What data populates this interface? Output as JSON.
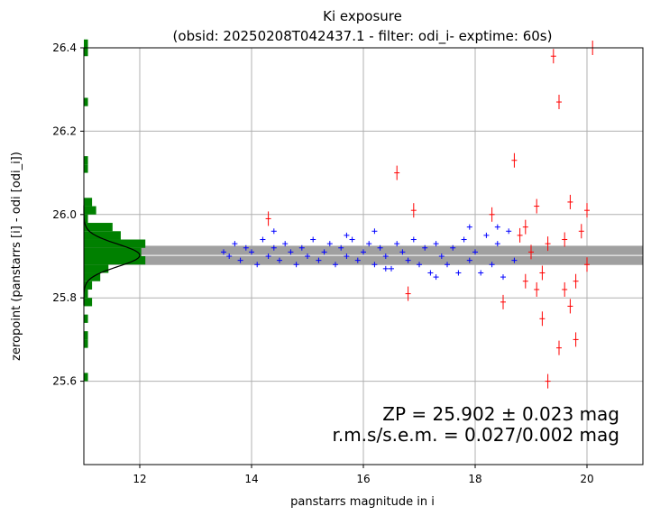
{
  "chart_data": {
    "type": "scatter",
    "title": "Ki exposure",
    "subtitle": "(obsid: 20250208T042437.1 - filter: odi_i- exptime: 60s)",
    "xlabel": "panstarrs magnitude in i",
    "ylabel": "zeropoint (panstarrs [i] - odi [odi_i])",
    "xlim": [
      11.0,
      21.0
    ],
    "ylim": [
      25.4,
      26.4
    ],
    "xticks": [
      "12",
      "14",
      "16",
      "18",
      "20"
    ],
    "yticks": [
      "25.6",
      "25.8",
      "26.0",
      "26.2",
      "26.4"
    ],
    "grid": true,
    "annotation": {
      "line1": "ZP = 25.902 ± 0.023 mag",
      "line2": "r.m.s/s.e.m. = 0.027/0.002 mag"
    },
    "zeropoint": 25.902,
    "zeropoint_band": [
      25.879,
      25.925
    ],
    "colors": {
      "blue_points": "#0000ff",
      "red_points": "#ff0000",
      "histogram": "#008000",
      "band": "#a0a0a0",
      "gaussian": "#000000",
      "grid": "#b0b0b0"
    },
    "series": [
      {
        "color": "blue",
        "points": [
          [
            13.5,
            25.91
          ],
          [
            13.6,
            25.9
          ],
          [
            13.7,
            25.93
          ],
          [
            13.8,
            25.89
          ],
          [
            13.9,
            25.92
          ],
          [
            14.0,
            25.91
          ],
          [
            14.1,
            25.88
          ],
          [
            14.2,
            25.94
          ],
          [
            14.3,
            25.9
          ],
          [
            14.4,
            25.92
          ],
          [
            14.5,
            25.89
          ],
          [
            14.6,
            25.93
          ],
          [
            14.7,
            25.91
          ],
          [
            14.8,
            25.88
          ],
          [
            14.9,
            25.92
          ],
          [
            15.0,
            25.9
          ],
          [
            15.1,
            25.94
          ],
          [
            15.2,
            25.89
          ],
          [
            15.3,
            25.91
          ],
          [
            15.4,
            25.93
          ],
          [
            15.5,
            25.88
          ],
          [
            15.6,
            25.92
          ],
          [
            15.7,
            25.9
          ],
          [
            15.8,
            25.94
          ],
          [
            15.9,
            25.89
          ],
          [
            16.0,
            25.91
          ],
          [
            16.1,
            25.93
          ],
          [
            16.2,
            25.88
          ],
          [
            16.3,
            25.92
          ],
          [
            16.4,
            25.9
          ],
          [
            16.5,
            25.87
          ],
          [
            16.6,
            25.93
          ],
          [
            16.7,
            25.91
          ],
          [
            16.8,
            25.89
          ],
          [
            16.9,
            25.94
          ],
          [
            17.0,
            25.88
          ],
          [
            17.1,
            25.92
          ],
          [
            17.2,
            25.86
          ],
          [
            17.3,
            25.93
          ],
          [
            17.4,
            25.9
          ],
          [
            17.5,
            25.88
          ],
          [
            17.6,
            25.92
          ],
          [
            17.7,
            25.86
          ],
          [
            17.8,
            25.94
          ],
          [
            17.9,
            25.89
          ],
          [
            18.0,
            25.91
          ],
          [
            18.1,
            25.86
          ],
          [
            18.2,
            25.95
          ],
          [
            18.3,
            25.88
          ],
          [
            18.4,
            25.93
          ],
          [
            18.5,
            25.85
          ],
          [
            18.6,
            25.96
          ],
          [
            18.7,
            25.89
          ],
          [
            14.4,
            25.96
          ],
          [
            15.7,
            25.95
          ],
          [
            16.2,
            25.96
          ],
          [
            17.9,
            25.97
          ],
          [
            18.4,
            25.97
          ],
          [
            17.3,
            25.85
          ],
          [
            16.4,
            25.87
          ]
        ]
      },
      {
        "color": "red",
        "points": [
          [
            14.3,
            25.99
          ],
          [
            16.6,
            26.1
          ],
          [
            16.9,
            26.01
          ],
          [
            16.8,
            25.81
          ],
          [
            18.3,
            26.0
          ],
          [
            18.5,
            25.79
          ],
          [
            18.7,
            26.13
          ],
          [
            18.8,
            25.95
          ],
          [
            18.9,
            25.84
          ],
          [
            19.0,
            25.91
          ],
          [
            19.1,
            26.02
          ],
          [
            19.2,
            25.75
          ],
          [
            19.3,
            25.93
          ],
          [
            19.4,
            26.38
          ],
          [
            19.5,
            26.27
          ],
          [
            19.6,
            25.82
          ],
          [
            19.7,
            26.03
          ],
          [
            19.8,
            25.7
          ],
          [
            19.9,
            25.96
          ],
          [
            20.0,
            25.88
          ],
          [
            20.1,
            26.4
          ],
          [
            19.3,
            25.6
          ],
          [
            19.5,
            25.68
          ],
          [
            18.9,
            25.97
          ],
          [
            19.2,
            25.86
          ],
          [
            19.6,
            25.94
          ],
          [
            19.8,
            25.84
          ],
          [
            20.0,
            26.01
          ],
          [
            19.1,
            25.82
          ],
          [
            19.7,
            25.78
          ]
        ]
      }
    ]
  }
}
